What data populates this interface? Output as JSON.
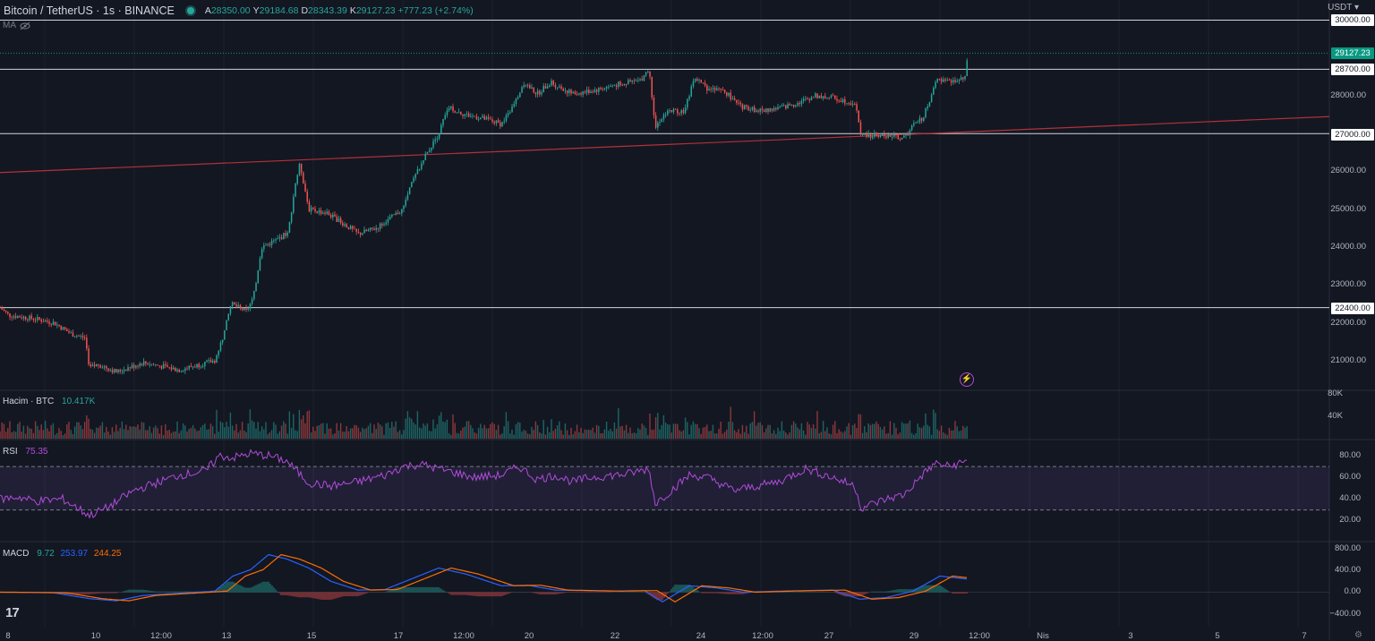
{
  "header": {
    "symbol_title": "Bitcoin / TetherUS · 1s · BINANCE",
    "ohlc": [
      {
        "k": "A",
        "v": "28350.00"
      },
      {
        "k": "Y",
        "v": "29184.68"
      },
      {
        "k": "D",
        "v": "28343.39"
      },
      {
        "k": "K",
        "v": "29127.23"
      }
    ],
    "change": "+777.23 (+2.74%)",
    "ma_label": "MA"
  },
  "currency": "USDT",
  "colors": {
    "bg": "#131722",
    "up": "#26a69a",
    "down": "#ef5350",
    "trend": "#b2313a",
    "rsi": "#b04cd8",
    "macd": "#2962ff",
    "signal": "#ff6d00",
    "grid": "#1e222d"
  },
  "price_axis": {
    "labels": [
      "30000.00",
      "28000.00",
      "27000.00",
      "26000.00",
      "25000.00",
      "24000.00",
      "23000.00",
      "22000.00",
      "21000.00"
    ],
    "tagged": [
      "30000.00",
      "28700.00",
      "27000.00",
      "22400.00"
    ],
    "current_price": "29127.23"
  },
  "time_axis": [
    "8",
    "10",
    "12:00",
    "13",
    "15",
    "17",
    "12:00",
    "20",
    "22",
    "24",
    "12:00",
    "27",
    "29",
    "12:00",
    "Nis",
    "3",
    "5",
    "7"
  ],
  "volume": {
    "title": "Hacim · BTC",
    "value": "10.417K",
    "axis": [
      "80K",
      "40K"
    ]
  },
  "rsi": {
    "title": "RSI",
    "value": "75.35",
    "axis": [
      "80.00",
      "60.00",
      "40.00",
      "20.00"
    ],
    "upper": 70,
    "lower": 30
  },
  "macd": {
    "title": "MACD",
    "v1": "9.72",
    "v2": "253.97",
    "v3": "244.25",
    "axis": [
      "800.00",
      "400.00",
      "0.00",
      "−400.00"
    ]
  },
  "chart_data": {
    "type": "candlestick",
    "series_name": "Bitcoin / TetherUS",
    "anchors": [
      [
        0,
        22400
      ],
      [
        10,
        22200
      ],
      [
        40,
        22100
      ],
      [
        60,
        22000
      ],
      [
        80,
        21700
      ],
      [
        95,
        21600
      ],
      [
        100,
        20800
      ],
      [
        110,
        20900
      ],
      [
        130,
        20700
      ],
      [
        160,
        20950
      ],
      [
        200,
        20750
      ],
      [
        240,
        21000
      ],
      [
        250,
        21700
      ],
      [
        258,
        22500
      ],
      [
        275,
        22300
      ],
      [
        283,
        22650
      ],
      [
        292,
        24000
      ],
      [
        310,
        24200
      ],
      [
        322,
        24400
      ],
      [
        330,
        25700
      ],
      [
        335,
        26200
      ],
      [
        345,
        25000
      ],
      [
        365,
        24900
      ],
      [
        385,
        24600
      ],
      [
        400,
        24350
      ],
      [
        420,
        24500
      ],
      [
        450,
        25000
      ],
      [
        460,
        25700
      ],
      [
        475,
        26400
      ],
      [
        490,
        27000
      ],
      [
        500,
        27700
      ],
      [
        520,
        27500
      ],
      [
        540,
        27400
      ],
      [
        560,
        27250
      ],
      [
        575,
        27800
      ],
      [
        585,
        28350
      ],
      [
        600,
        28050
      ],
      [
        615,
        28350
      ],
      [
        640,
        28050
      ],
      [
        665,
        28150
      ],
      [
        690,
        28300
      ],
      [
        715,
        28400
      ],
      [
        725,
        28700
      ],
      [
        732,
        27200
      ],
      [
        745,
        27600
      ],
      [
        765,
        27600
      ],
      [
        775,
        28500
      ],
      [
        790,
        28200
      ],
      [
        810,
        28100
      ],
      [
        830,
        27700
      ],
      [
        850,
        27600
      ],
      [
        875,
        27700
      ],
      [
        890,
        27800
      ],
      [
        910,
        28000
      ],
      [
        930,
        27950
      ],
      [
        955,
        27800
      ],
      [
        962,
        26950
      ],
      [
        990,
        26950
      ],
      [
        1010,
        26880
      ],
      [
        1020,
        27200
      ],
      [
        1030,
        27400
      ],
      [
        1040,
        27900
      ],
      [
        1045,
        28400
      ],
      [
        1060,
        28350
      ],
      [
        1078,
        28450
      ],
      [
        1081,
        29127
      ]
    ],
    "trend_line": [
      [
        0,
        25970
      ],
      [
        1485,
        27450
      ]
    ],
    "horizontal_levels": [
      30000,
      28700,
      27000,
      22400
    ],
    "rsi_anchors": [
      [
        0,
        40
      ],
      [
        20,
        42
      ],
      [
        40,
        38
      ],
      [
        70,
        40
      ],
      [
        100,
        25
      ],
      [
        120,
        32
      ],
      [
        150,
        48
      ],
      [
        175,
        55
      ],
      [
        200,
        62
      ],
      [
        230,
        66
      ],
      [
        245,
        80
      ],
      [
        260,
        78
      ],
      [
        280,
        82
      ],
      [
        300,
        80
      ],
      [
        320,
        75
      ],
      [
        345,
        55
      ],
      [
        370,
        52
      ],
      [
        400,
        56
      ],
      [
        430,
        62
      ],
      [
        450,
        70
      ],
      [
        470,
        72
      ],
      [
        490,
        68
      ],
      [
        510,
        64
      ],
      [
        530,
        60
      ],
      [
        560,
        62
      ],
      [
        580,
        70
      ],
      [
        600,
        58
      ],
      [
        620,
        62
      ],
      [
        640,
        56
      ],
      [
        660,
        60
      ],
      [
        700,
        63
      ],
      [
        725,
        68
      ],
      [
        732,
        36
      ],
      [
        750,
        48
      ],
      [
        770,
        62
      ],
      [
        790,
        60
      ],
      [
        820,
        48
      ],
      [
        845,
        52
      ],
      [
        870,
        56
      ],
      [
        900,
        68
      ],
      [
        930,
        60
      ],
      [
        955,
        52
      ],
      [
        962,
        32
      ],
      [
        990,
        40
      ],
      [
        1010,
        44
      ],
      [
        1030,
        62
      ],
      [
        1045,
        73
      ],
      [
        1060,
        70
      ],
      [
        1081,
        75
      ]
    ],
    "macd_anchors": [
      [
        0,
        0
      ],
      [
        60,
        -10
      ],
      [
        100,
        -120
      ],
      [
        130,
        -160
      ],
      [
        160,
        -60
      ],
      [
        200,
        -20
      ],
      [
        240,
        20
      ],
      [
        260,
        300
      ],
      [
        280,
        420
      ],
      [
        300,
        700
      ],
      [
        320,
        620
      ],
      [
        345,
        450
      ],
      [
        370,
        200
      ],
      [
        400,
        40
      ],
      [
        430,
        50
      ],
      [
        460,
        250
      ],
      [
        490,
        450
      ],
      [
        520,
        340
      ],
      [
        560,
        120
      ],
      [
        590,
        130
      ],
      [
        620,
        40
      ],
      [
        680,
        20
      ],
      [
        720,
        30
      ],
      [
        740,
        -180
      ],
      [
        770,
        120
      ],
      [
        800,
        80
      ],
      [
        830,
        0
      ],
      [
        870,
        20
      ],
      [
        930,
        40
      ],
      [
        960,
        -130
      ],
      [
        990,
        -100
      ],
      [
        1020,
        20
      ],
      [
        1050,
        300
      ],
      [
        1081,
        244
      ]
    ],
    "volume_max": 80000
  }
}
